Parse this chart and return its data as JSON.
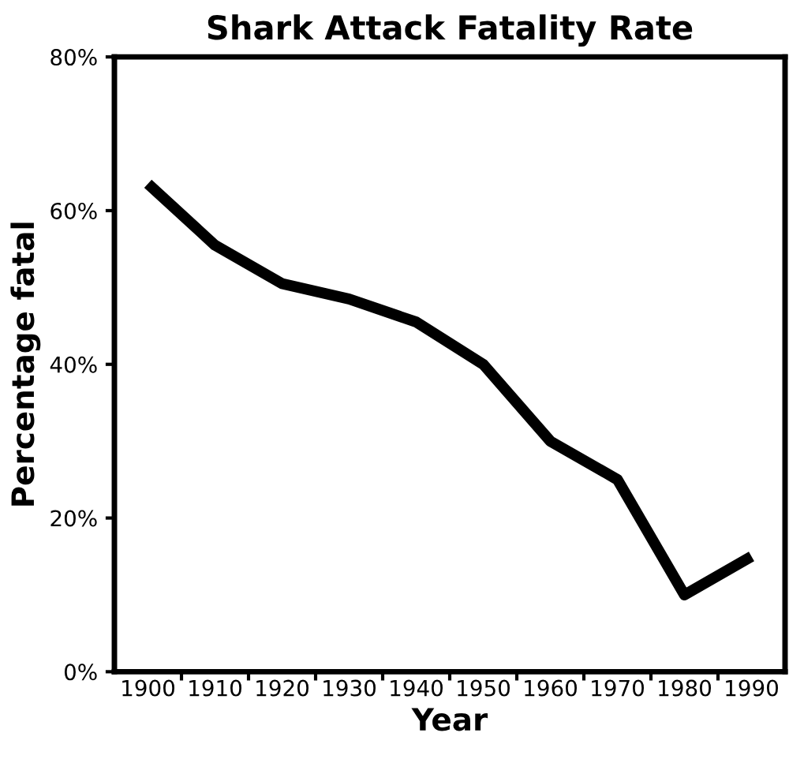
{
  "chart_data": {
    "type": "line",
    "title": "Shark Attack Fatality Rate",
    "xlabel": "Year",
    "ylabel": "Percentage fatal",
    "categories": [
      "1900",
      "1910",
      "1920",
      "1930",
      "1940",
      "1950",
      "1960",
      "1970",
      "1980",
      "1990"
    ],
    "series": [
      {
        "color": "#000000",
        "values": [
          63.5,
          55.5,
          50.5,
          48.5,
          45.5,
          40,
          30,
          25,
          10,
          15
        ]
      }
    ],
    "ylim": [
      0,
      80
    ],
    "yticks": [
      {
        "value": 0,
        "label": "0%"
      },
      {
        "value": 20,
        "label": "20%"
      },
      {
        "value": 40,
        "label": "40%"
      },
      {
        "value": 60,
        "label": "60%"
      },
      {
        "value": 80,
        "label": "80%"
      }
    ],
    "grid": false,
    "legend": false,
    "marker": "none",
    "line_style": "solid"
  }
}
